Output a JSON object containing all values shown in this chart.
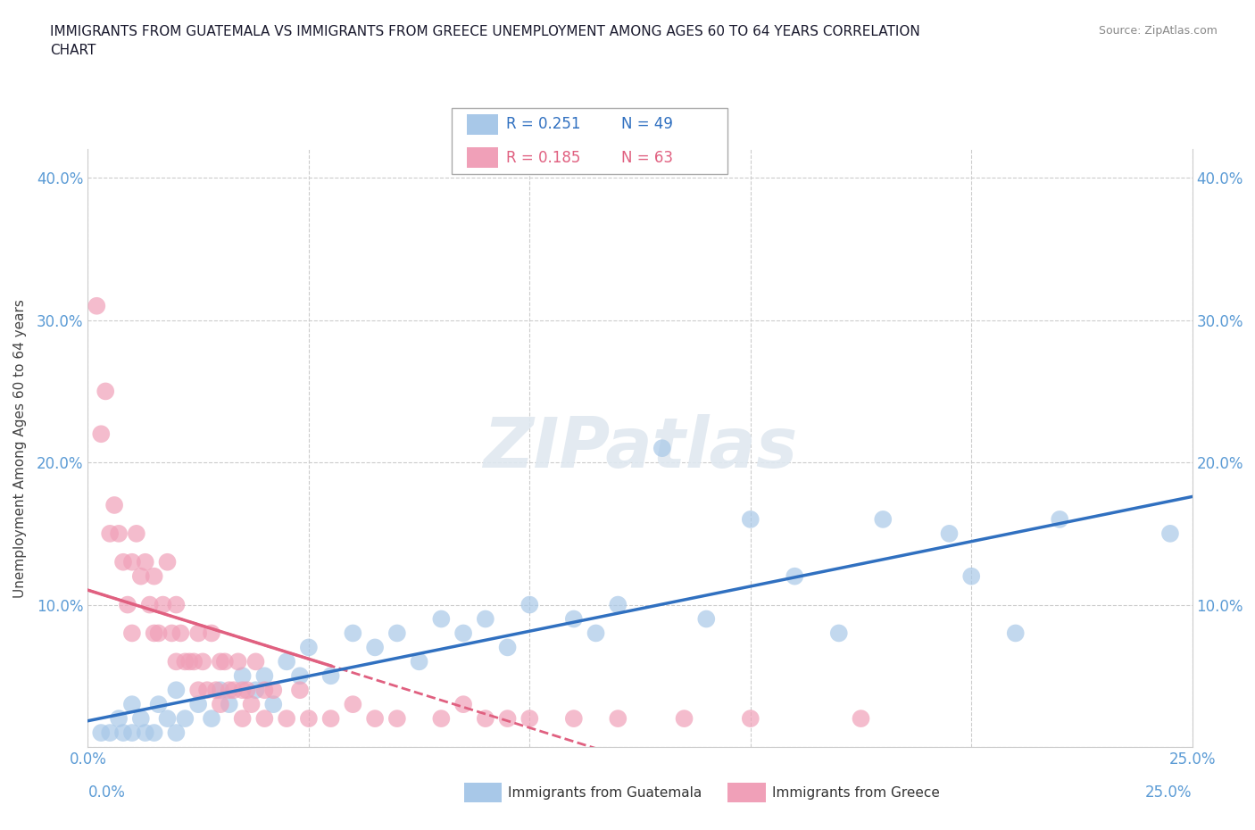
{
  "title": "IMMIGRANTS FROM GUATEMALA VS IMMIGRANTS FROM GREECE UNEMPLOYMENT AMONG AGES 60 TO 64 YEARS CORRELATION\nCHART",
  "source_text": "Source: ZipAtlas.com",
  "ylabel": "Unemployment Among Ages 60 to 64 years",
  "xlim": [
    0.0,
    0.25
  ],
  "ylim": [
    0.0,
    0.42
  ],
  "xticks": [
    0.0,
    0.05,
    0.1,
    0.15,
    0.2,
    0.25
  ],
  "xticklabels": [
    "0.0%",
    "",
    "",
    "",
    "",
    "25.0%"
  ],
  "yticks": [
    0.0,
    0.1,
    0.2,
    0.3,
    0.4
  ],
  "yticklabels": [
    "",
    "10.0%",
    "20.0%",
    "30.0%",
    "40.0%"
  ],
  "guatemala_color": "#a8c8e8",
  "greece_color": "#f0a0b8",
  "guatemala_line_color": "#3070c0",
  "greece_line_color": "#e06080",
  "guatemala_R": 0.251,
  "guatemala_N": 49,
  "greece_R": 0.185,
  "greece_N": 63,
  "watermark": "ZIPatlas",
  "guatemala_points": [
    [
      0.003,
      0.01
    ],
    [
      0.005,
      0.01
    ],
    [
      0.007,
      0.02
    ],
    [
      0.008,
      0.01
    ],
    [
      0.01,
      0.01
    ],
    [
      0.01,
      0.03
    ],
    [
      0.012,
      0.02
    ],
    [
      0.013,
      0.01
    ],
    [
      0.015,
      0.01
    ],
    [
      0.016,
      0.03
    ],
    [
      0.018,
      0.02
    ],
    [
      0.02,
      0.01
    ],
    [
      0.02,
      0.04
    ],
    [
      0.022,
      0.02
    ],
    [
      0.025,
      0.03
    ],
    [
      0.028,
      0.02
    ],
    [
      0.03,
      0.04
    ],
    [
      0.032,
      0.03
    ],
    [
      0.035,
      0.05
    ],
    [
      0.038,
      0.04
    ],
    [
      0.04,
      0.05
    ],
    [
      0.042,
      0.03
    ],
    [
      0.045,
      0.06
    ],
    [
      0.048,
      0.05
    ],
    [
      0.05,
      0.07
    ],
    [
      0.055,
      0.05
    ],
    [
      0.06,
      0.08
    ],
    [
      0.065,
      0.07
    ],
    [
      0.07,
      0.08
    ],
    [
      0.075,
      0.06
    ],
    [
      0.08,
      0.09
    ],
    [
      0.085,
      0.08
    ],
    [
      0.09,
      0.09
    ],
    [
      0.095,
      0.07
    ],
    [
      0.1,
      0.1
    ],
    [
      0.11,
      0.09
    ],
    [
      0.115,
      0.08
    ],
    [
      0.12,
      0.1
    ],
    [
      0.13,
      0.21
    ],
    [
      0.14,
      0.09
    ],
    [
      0.15,
      0.16
    ],
    [
      0.16,
      0.12
    ],
    [
      0.17,
      0.08
    ],
    [
      0.18,
      0.16
    ],
    [
      0.195,
      0.15
    ],
    [
      0.2,
      0.12
    ],
    [
      0.21,
      0.08
    ],
    [
      0.22,
      0.16
    ],
    [
      0.245,
      0.15
    ]
  ],
  "greece_points": [
    [
      0.002,
      0.31
    ],
    [
      0.003,
      0.22
    ],
    [
      0.004,
      0.25
    ],
    [
      0.005,
      0.15
    ],
    [
      0.006,
      0.17
    ],
    [
      0.007,
      0.15
    ],
    [
      0.008,
      0.13
    ],
    [
      0.009,
      0.1
    ],
    [
      0.01,
      0.13
    ],
    [
      0.01,
      0.08
    ],
    [
      0.011,
      0.15
    ],
    [
      0.012,
      0.12
    ],
    [
      0.013,
      0.13
    ],
    [
      0.014,
      0.1
    ],
    [
      0.015,
      0.12
    ],
    [
      0.015,
      0.08
    ],
    [
      0.016,
      0.08
    ],
    [
      0.017,
      0.1
    ],
    [
      0.018,
      0.13
    ],
    [
      0.019,
      0.08
    ],
    [
      0.02,
      0.1
    ],
    [
      0.02,
      0.06
    ],
    [
      0.021,
      0.08
    ],
    [
      0.022,
      0.06
    ],
    [
      0.023,
      0.06
    ],
    [
      0.024,
      0.06
    ],
    [
      0.025,
      0.08
    ],
    [
      0.025,
      0.04
    ],
    [
      0.026,
      0.06
    ],
    [
      0.027,
      0.04
    ],
    [
      0.028,
      0.08
    ],
    [
      0.029,
      0.04
    ],
    [
      0.03,
      0.06
    ],
    [
      0.03,
      0.03
    ],
    [
      0.031,
      0.06
    ],
    [
      0.032,
      0.04
    ],
    [
      0.033,
      0.04
    ],
    [
      0.034,
      0.06
    ],
    [
      0.035,
      0.04
    ],
    [
      0.035,
      0.02
    ],
    [
      0.036,
      0.04
    ],
    [
      0.037,
      0.03
    ],
    [
      0.038,
      0.06
    ],
    [
      0.04,
      0.04
    ],
    [
      0.04,
      0.02
    ],
    [
      0.042,
      0.04
    ],
    [
      0.045,
      0.02
    ],
    [
      0.048,
      0.04
    ],
    [
      0.05,
      0.02
    ],
    [
      0.055,
      0.02
    ],
    [
      0.06,
      0.03
    ],
    [
      0.065,
      0.02
    ],
    [
      0.07,
      0.02
    ],
    [
      0.08,
      0.02
    ],
    [
      0.085,
      0.03
    ],
    [
      0.09,
      0.02
    ],
    [
      0.095,
      0.02
    ],
    [
      0.1,
      0.02
    ],
    [
      0.11,
      0.02
    ],
    [
      0.12,
      0.02
    ],
    [
      0.135,
      0.02
    ],
    [
      0.15,
      0.02
    ],
    [
      0.175,
      0.02
    ]
  ]
}
